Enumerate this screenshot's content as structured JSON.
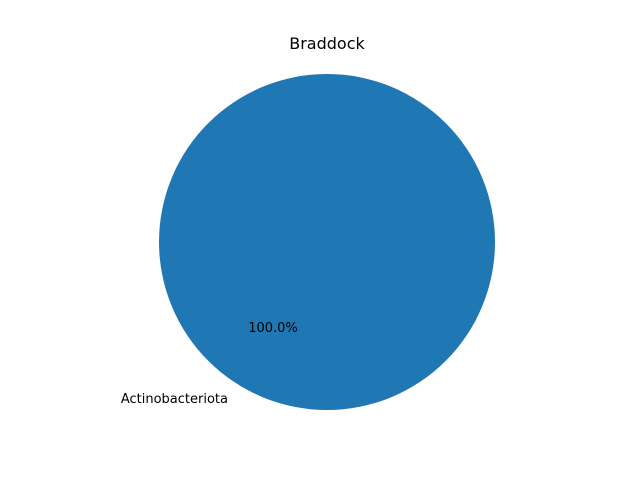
{
  "chart_data": {
    "type": "pie",
    "title": "Braddock",
    "categories": [
      "Actinobacteriota"
    ],
    "values": [
      100.0
    ],
    "percent_labels": [
      "100.0%"
    ],
    "colors": [
      "#1f77b4"
    ],
    "start_angle_deg": 0,
    "legend": "none"
  }
}
